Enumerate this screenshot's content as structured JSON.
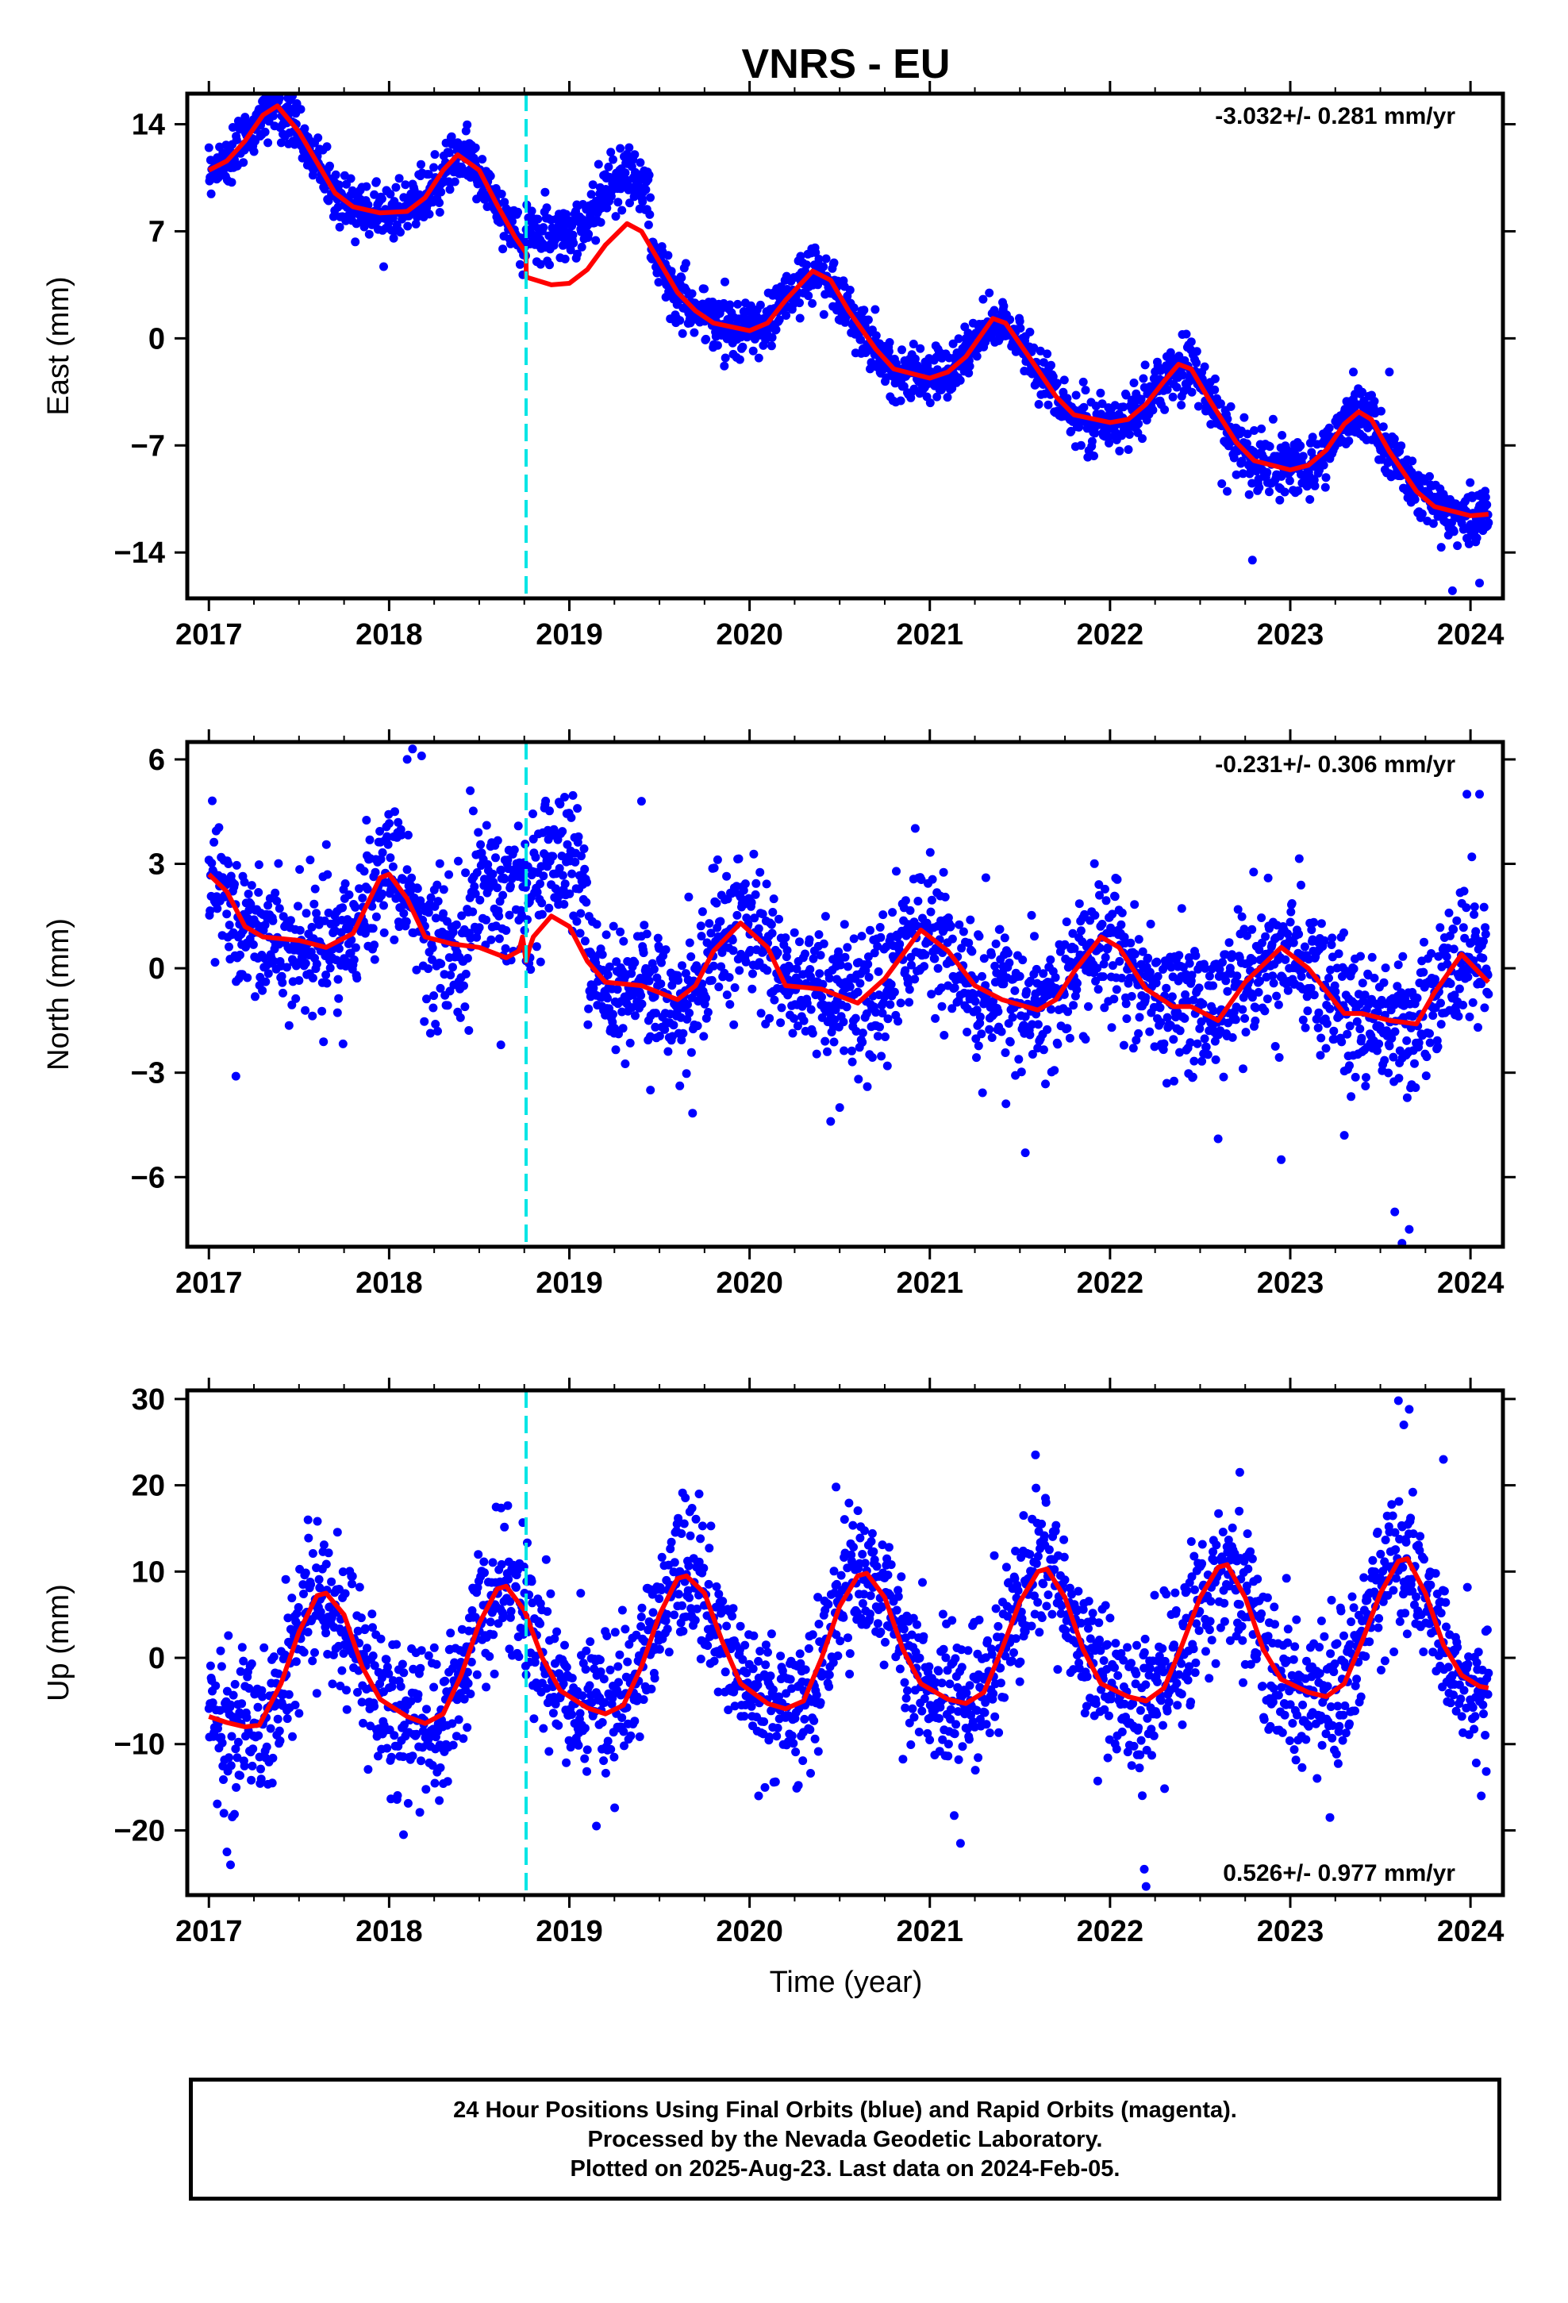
{
  "title": "VNRS - EU",
  "xlabel": "Time (year)",
  "footer": {
    "line1": "24 Hour Positions Using Final Orbits (blue) and Rapid Orbits (magenta).",
    "line2": "Processed by the Nevada Geodetic Laboratory.",
    "line3": "Plotted on 2025-Aug-23. Last data on 2024-Feb-05."
  },
  "colors": {
    "points": "#0000ff",
    "model": "#ff0000",
    "break": "#00e5e5",
    "frame": "#000000"
  },
  "chart_data": [
    {
      "type": "scatter",
      "component": "east",
      "ylabel": "East (mm)",
      "rate_label": "-3.032+/- 0.281 mm/yr",
      "xlim": [
        2016.88,
        2024.18
      ],
      "ylim": [
        -17.0,
        16.0
      ],
      "xticks": [
        2017,
        2018,
        2019,
        2020,
        2021,
        2022,
        2023,
        2024
      ],
      "yticks": [
        14,
        7,
        0,
        -7,
        -14
      ],
      "break_x": 2018.76,
      "data_span": [
        2017.0,
        2024.1
      ],
      "model_points": [
        [
          2017.0,
          11.0
        ],
        [
          2017.1,
          11.6
        ],
        [
          2017.2,
          12.9
        ],
        [
          2017.3,
          14.6
        ],
        [
          2017.38,
          15.2
        ],
        [
          2017.5,
          13.5
        ],
        [
          2017.6,
          11.5
        ],
        [
          2017.7,
          9.5
        ],
        [
          2017.8,
          8.6
        ],
        [
          2017.95,
          8.2
        ],
        [
          2018.1,
          8.3
        ],
        [
          2018.2,
          9.2
        ],
        [
          2018.3,
          11.0
        ],
        [
          2018.38,
          12.0
        ],
        [
          2018.5,
          11.0
        ],
        [
          2018.6,
          8.7
        ],
        [
          2018.7,
          6.6
        ],
        [
          2018.759,
          5.6
        ],
        [
          2018.761,
          4.0
        ],
        [
          2018.9,
          3.5
        ],
        [
          2019.0,
          3.6
        ],
        [
          2019.1,
          4.5
        ],
        [
          2019.2,
          6.1
        ],
        [
          2019.32,
          7.5
        ],
        [
          2019.4,
          7.0
        ],
        [
          2019.5,
          5.0
        ],
        [
          2019.6,
          3.0
        ],
        [
          2019.7,
          1.8
        ],
        [
          2019.8,
          1.0
        ],
        [
          2020.0,
          0.5
        ],
        [
          2020.1,
          1.0
        ],
        [
          2020.2,
          2.5
        ],
        [
          2020.35,
          4.4
        ],
        [
          2020.45,
          3.8
        ],
        [
          2020.55,
          1.8
        ],
        [
          2020.7,
          -0.7
        ],
        [
          2020.8,
          -2.0
        ],
        [
          2021.0,
          -2.6
        ],
        [
          2021.1,
          -2.2
        ],
        [
          2021.2,
          -1.2
        ],
        [
          2021.35,
          1.3
        ],
        [
          2021.42,
          1.0
        ],
        [
          2021.55,
          -1.2
        ],
        [
          2021.7,
          -3.8
        ],
        [
          2021.8,
          -5.0
        ],
        [
          2022.0,
          -5.5
        ],
        [
          2022.1,
          -5.3
        ],
        [
          2022.2,
          -4.3
        ],
        [
          2022.3,
          -2.8
        ],
        [
          2022.38,
          -1.7
        ],
        [
          2022.45,
          -2.0
        ],
        [
          2022.55,
          -4.0
        ],
        [
          2022.7,
          -6.8
        ],
        [
          2022.8,
          -8.0
        ],
        [
          2023.0,
          -8.6
        ],
        [
          2023.1,
          -8.3
        ],
        [
          2023.2,
          -7.3
        ],
        [
          2023.3,
          -5.6
        ],
        [
          2023.38,
          -4.8
        ],
        [
          2023.45,
          -5.3
        ],
        [
          2023.55,
          -7.4
        ],
        [
          2023.7,
          -10.0
        ],
        [
          2023.8,
          -11.0
        ],
        [
          2024.0,
          -11.6
        ],
        [
          2024.1,
          -11.5
        ]
      ],
      "scatter": {
        "points_count": 2300,
        "scatter_sd": 0.9,
        "trend_offset": [
          -1.5,
          0.5
        ],
        "outliers": [
          [
            2022.79,
            -14.5
          ],
          [
            2023.9,
            -16.5
          ],
          [
            2024.05,
            -16.0
          ],
          [
            2023.35,
            -2.2
          ],
          [
            2023.55,
            -2.2
          ],
          [
            2022.62,
            -9.5
          ],
          [
            2022.65,
            -10.0
          ],
          [
            2017.38,
            16.0
          ]
        ]
      }
    },
    {
      "type": "scatter",
      "component": "north",
      "ylabel": "North (mm)",
      "rate_label": "-0.231+/- 0.306 mm/yr",
      "xlim": [
        2016.88,
        2024.18
      ],
      "ylim": [
        -8.0,
        6.5
      ],
      "xticks": [
        2017,
        2018,
        2019,
        2020,
        2021,
        2022,
        2023,
        2024
      ],
      "yticks": [
        6,
        3,
        0,
        -3,
        -6
      ],
      "break_x": 2018.76,
      "data_span": [
        2017.0,
        2024.1
      ],
      "model_points": [
        [
          2017.0,
          2.7
        ],
        [
          2017.1,
          2.2
        ],
        [
          2017.2,
          1.2
        ],
        [
          2017.3,
          0.9
        ],
        [
          2017.5,
          0.8
        ],
        [
          2017.65,
          0.6
        ],
        [
          2017.8,
          1.0
        ],
        [
          2017.95,
          2.6
        ],
        [
          2018.0,
          2.7
        ],
        [
          2018.1,
          2.0
        ],
        [
          2018.2,
          0.9
        ],
        [
          2018.35,
          0.7
        ],
        [
          2018.5,
          0.6
        ],
        [
          2018.65,
          0.3
        ],
        [
          2018.72,
          0.5
        ],
        [
          2018.74,
          0.9
        ],
        [
          2018.76,
          0.2
        ],
        [
          2018.78,
          0.6
        ],
        [
          2018.8,
          0.9
        ],
        [
          2018.9,
          1.5
        ],
        [
          2019.0,
          1.2
        ],
        [
          2019.1,
          0.2
        ],
        [
          2019.2,
          -0.4
        ],
        [
          2019.4,
          -0.5
        ],
        [
          2019.6,
          -0.9
        ],
        [
          2019.7,
          -0.5
        ],
        [
          2019.8,
          0.5
        ],
        [
          2019.95,
          1.3
        ],
        [
          2020.1,
          0.6
        ],
        [
          2020.2,
          -0.5
        ],
        [
          2020.4,
          -0.6
        ],
        [
          2020.6,
          -1.0
        ],
        [
          2020.75,
          -0.3
        ],
        [
          2020.95,
          1.1
        ],
        [
          2021.1,
          0.5
        ],
        [
          2021.25,
          -0.5
        ],
        [
          2021.4,
          -0.9
        ],
        [
          2021.6,
          -1.2
        ],
        [
          2021.7,
          -0.9
        ],
        [
          2021.8,
          -0.1
        ],
        [
          2021.95,
          0.9
        ],
        [
          2022.05,
          0.6
        ],
        [
          2022.2,
          -0.6
        ],
        [
          2022.35,
          -1.1
        ],
        [
          2022.45,
          -1.1
        ],
        [
          2022.6,
          -1.5
        ],
        [
          2022.75,
          -0.4
        ],
        [
          2022.95,
          0.6
        ],
        [
          2023.1,
          0.0
        ],
        [
          2023.3,
          -1.3
        ],
        [
          2023.4,
          -1.3
        ],
        [
          2023.55,
          -1.5
        ],
        [
          2023.7,
          -1.6
        ],
        [
          2023.8,
          -0.7
        ],
        [
          2023.95,
          0.4
        ],
        [
          2024.1,
          -0.4
        ]
      ],
      "scatter": {
        "points_count": 2300,
        "scatter_sd": 1.0,
        "trend_offset": [
          0.0,
          0.0
        ],
        "outliers": [
          [
            2018.13,
            6.3
          ],
          [
            2018.1,
            6.0
          ],
          [
            2018.18,
            6.1
          ],
          [
            2023.62,
            -7.9
          ],
          [
            2023.66,
            -7.5
          ],
          [
            2023.58,
            -7.0
          ],
          [
            2023.98,
            5.0
          ],
          [
            2024.05,
            5.0
          ],
          [
            2018.62,
            -2.2
          ],
          [
            2019.4,
            4.8
          ],
          [
            2018.45,
            5.1
          ],
          [
            2019.45,
            -3.5
          ],
          [
            2022.6,
            -4.9
          ],
          [
            2021.53,
            -5.3
          ],
          [
            2022.95,
            -5.5
          ],
          [
            2020.45,
            -4.4
          ],
          [
            2020.5,
            -4.0
          ],
          [
            2017.15,
            -3.1
          ],
          [
            2023.3,
            -4.8
          ]
        ]
      }
    },
    {
      "type": "scatter",
      "component": "up",
      "ylabel": "Up (mm)",
      "rate_label": "0.526+/- 0.977 mm/yr",
      "xlim": [
        2016.88,
        2024.18
      ],
      "ylim": [
        -27.5,
        31.0
      ],
      "xticks": [
        2017,
        2018,
        2019,
        2020,
        2021,
        2022,
        2023,
        2024
      ],
      "yticks": [
        30,
        20,
        10,
        0,
        -10,
        -20
      ],
      "break_x": 2018.76,
      "data_span": [
        2017.0,
        2024.1
      ],
      "model_points": [
        [
          2017.0,
          -6.8
        ],
        [
          2017.1,
          -7.5
        ],
        [
          2017.2,
          -8.0
        ],
        [
          2017.28,
          -7.8
        ],
        [
          2017.4,
          -3.0
        ],
        [
          2017.5,
          3.0
        ],
        [
          2017.6,
          7.2
        ],
        [
          2017.65,
          7.5
        ],
        [
          2017.75,
          5.0
        ],
        [
          2017.85,
          -1.0
        ],
        [
          2017.95,
          -4.8
        ],
        [
          2018.1,
          -6.8
        ],
        [
          2018.2,
          -7.6
        ],
        [
          2018.3,
          -6.5
        ],
        [
          2018.4,
          -2.0
        ],
        [
          2018.5,
          4.0
        ],
        [
          2018.6,
          8.0
        ],
        [
          2018.65,
          8.3
        ],
        [
          2018.75,
          5.5
        ],
        [
          2018.85,
          0.0
        ],
        [
          2018.95,
          -3.8
        ],
        [
          2019.1,
          -5.8
        ],
        [
          2019.2,
          -6.5
        ],
        [
          2019.3,
          -5.5
        ],
        [
          2019.4,
          -1.0
        ],
        [
          2019.5,
          5.0
        ],
        [
          2019.6,
          9.2
        ],
        [
          2019.65,
          9.5
        ],
        [
          2019.75,
          7.5
        ],
        [
          2019.85,
          1.8
        ],
        [
          2019.95,
          -3.0
        ],
        [
          2020.1,
          -5.3
        ],
        [
          2020.2,
          -5.9
        ],
        [
          2020.3,
          -5.0
        ],
        [
          2020.4,
          0.0
        ],
        [
          2020.5,
          6.0
        ],
        [
          2020.6,
          9.5
        ],
        [
          2020.65,
          9.8
        ],
        [
          2020.75,
          7.0
        ],
        [
          2020.85,
          1.0
        ],
        [
          2020.95,
          -3.0
        ],
        [
          2021.1,
          -4.8
        ],
        [
          2021.2,
          -5.3
        ],
        [
          2021.3,
          -4.0
        ],
        [
          2021.4,
          1.0
        ],
        [
          2021.5,
          6.5
        ],
        [
          2021.6,
          10.0
        ],
        [
          2021.65,
          10.3
        ],
        [
          2021.75,
          7.0
        ],
        [
          2021.85,
          1.0
        ],
        [
          2021.95,
          -3.0
        ],
        [
          2022.1,
          -4.5
        ],
        [
          2022.2,
          -5.0
        ],
        [
          2022.3,
          -3.5
        ],
        [
          2022.4,
          1.5
        ],
        [
          2022.5,
          7.0
        ],
        [
          2022.6,
          10.5
        ],
        [
          2022.65,
          10.8
        ],
        [
          2022.75,
          7.0
        ],
        [
          2022.85,
          1.0
        ],
        [
          2022.95,
          -2.5
        ],
        [
          2023.1,
          -4.0
        ],
        [
          2023.2,
          -4.5
        ],
        [
          2023.3,
          -3.0
        ],
        [
          2023.4,
          2.0
        ],
        [
          2023.5,
          7.5
        ],
        [
          2023.6,
          11.2
        ],
        [
          2023.65,
          11.5
        ],
        [
          2023.75,
          7.5
        ],
        [
          2023.85,
          1.5
        ],
        [
          2023.95,
          -2.0
        ],
        [
          2024.05,
          -3.3
        ],
        [
          2024.1,
          -3.5
        ]
      ],
      "scatter": {
        "points_count": 2300,
        "scatter_sd": 4.2,
        "trend_offset": [
          0.0,
          0.0
        ],
        "outliers": [
          [
            2023.6,
            29.8
          ],
          [
            2023.66,
            28.8
          ],
          [
            2023.63,
            27.0
          ],
          [
            2022.2,
            -26.5
          ],
          [
            2022.19,
            -24.5
          ],
          [
            2017.12,
            -24.0
          ],
          [
            2017.1,
            -22.5
          ],
          [
            2021.17,
            -21.5
          ],
          [
            2018.08,
            -20.5
          ],
          [
            2019.15,
            -19.5
          ],
          [
            2023.22,
            -18.5
          ],
          [
            2020.05,
            -16.0
          ],
          [
            2024.06,
            -16.0
          ],
          [
            2022.72,
            21.5
          ],
          [
            2020.48,
            19.8
          ],
          [
            2019.72,
            19.0
          ],
          [
            2021.52,
            16.5
          ],
          [
            2017.55,
            16.0
          ],
          [
            2023.85,
            23.0
          ]
        ]
      }
    }
  ]
}
